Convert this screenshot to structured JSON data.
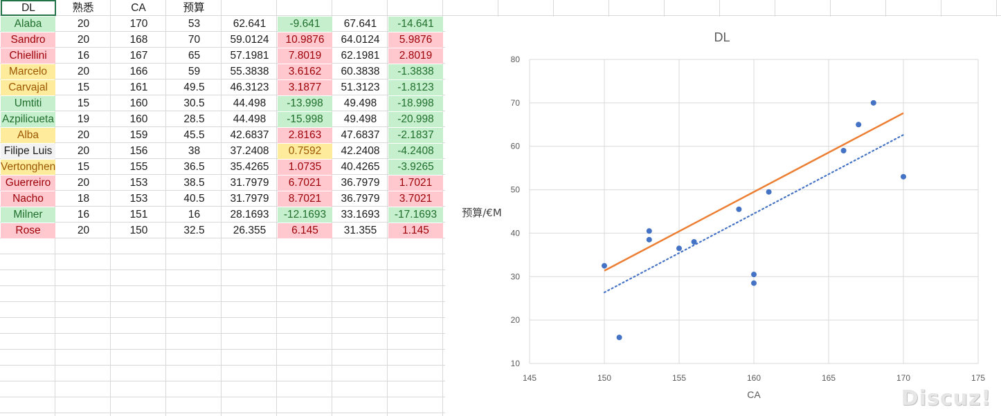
{
  "sheet": {
    "headers": [
      "DL",
      "熟悉",
      "CA",
      "预算",
      "",
      "",
      "",
      ""
    ],
    "rows": [
      {
        "cells": [
          "Alaba",
          "20",
          "170",
          "53",
          "62.641",
          "-9.641",
          "67.641",
          "-14.641"
        ],
        "colors": [
          "green",
          "",
          "",
          "",
          "",
          "green",
          "",
          "green"
        ]
      },
      {
        "cells": [
          "Sandro",
          "20",
          "168",
          "70",
          "59.0124",
          "10.9876",
          "64.0124",
          "5.9876"
        ],
        "colors": [
          "red",
          "",
          "",
          "",
          "",
          "red",
          "",
          "red"
        ]
      },
      {
        "cells": [
          "Chiellini",
          "16",
          "167",
          "65",
          "57.1981",
          "7.8019",
          "62.1981",
          "2.8019"
        ],
        "colors": [
          "red",
          "",
          "",
          "",
          "",
          "red",
          "",
          "red"
        ]
      },
      {
        "cells": [
          "Marcelo",
          "20",
          "166",
          "59",
          "55.3838",
          "3.6162",
          "60.3838",
          "-1.3838"
        ],
        "colors": [
          "yellow",
          "",
          "",
          "",
          "",
          "red",
          "",
          "green"
        ]
      },
      {
        "cells": [
          "Carvajal",
          "15",
          "161",
          "49.5",
          "46.3123",
          "3.1877",
          "51.3123",
          "-1.8123"
        ],
        "colors": [
          "yellow",
          "",
          "",
          "",
          "",
          "red",
          "",
          "green"
        ]
      },
      {
        "cells": [
          "Umtiti",
          "15",
          "160",
          "30.5",
          "44.498",
          "-13.998",
          "49.498",
          "-18.998"
        ],
        "colors": [
          "green",
          "",
          "",
          "",
          "",
          "green",
          "",
          "green"
        ]
      },
      {
        "cells": [
          "Azpilicueta",
          "19",
          "160",
          "28.5",
          "44.498",
          "-15.998",
          "49.498",
          "-20.998"
        ],
        "colors": [
          "green",
          "",
          "",
          "",
          "",
          "green",
          "",
          "green"
        ]
      },
      {
        "cells": [
          "Alba",
          "20",
          "159",
          "45.5",
          "42.6837",
          "2.8163",
          "47.6837",
          "-2.1837"
        ],
        "colors": [
          "yellow",
          "",
          "",
          "",
          "",
          "red",
          "",
          "green"
        ]
      },
      {
        "cells": [
          "Filipe Luis",
          "20",
          "156",
          "38",
          "37.2408",
          "0.7592",
          "42.2408",
          "-4.2408"
        ],
        "colors": [
          "gray",
          "",
          "",
          "",
          "",
          "yellow",
          "",
          "green"
        ]
      },
      {
        "cells": [
          "Vertonghen",
          "15",
          "155",
          "36.5",
          "35.4265",
          "1.0735",
          "40.4265",
          "-3.9265"
        ],
        "colors": [
          "yellow",
          "",
          "",
          "",
          "",
          "red",
          "",
          "green"
        ]
      },
      {
        "cells": [
          "Guerreiro",
          "20",
          "153",
          "38.5",
          "31.7979",
          "6.7021",
          "36.7979",
          "1.7021"
        ],
        "colors": [
          "red",
          "",
          "",
          "",
          "",
          "red",
          "",
          "red"
        ]
      },
      {
        "cells": [
          "Nacho",
          "18",
          "153",
          "40.5",
          "31.7979",
          "8.7021",
          "36.7979",
          "3.7021"
        ],
        "colors": [
          "red",
          "",
          "",
          "",
          "",
          "red",
          "",
          "red"
        ]
      },
      {
        "cells": [
          "Milner",
          "16",
          "151",
          "16",
          "28.1693",
          "-12.1693",
          "33.1693",
          "-17.1693"
        ],
        "colors": [
          "green",
          "",
          "",
          "",
          "",
          "green",
          "",
          "green"
        ]
      },
      {
        "cells": [
          "Rose",
          "20",
          "150",
          "32.5",
          "26.355",
          "6.145",
          "31.355",
          "1.145"
        ],
        "colors": [
          "red",
          "",
          "",
          "",
          "",
          "red",
          "",
          "red"
        ]
      }
    ]
  },
  "chart_data": {
    "type": "scatter",
    "title": "DL",
    "xlabel": "CA",
    "ylabel": "预算/€M",
    "xlim": [
      145,
      175
    ],
    "ylim": [
      10,
      80
    ],
    "xticks": [
      145,
      150,
      155,
      160,
      165,
      170,
      175
    ],
    "yticks": [
      10,
      20,
      30,
      40,
      50,
      60,
      70,
      80
    ],
    "grid": true,
    "points": [
      {
        "x": 170,
        "y": 53
      },
      {
        "x": 168,
        "y": 70
      },
      {
        "x": 167,
        "y": 65
      },
      {
        "x": 166,
        "y": 59
      },
      {
        "x": 161,
        "y": 49.5
      },
      {
        "x": 160,
        "y": 30.5
      },
      {
        "x": 160,
        "y": 28.5
      },
      {
        "x": 159,
        "y": 45.5
      },
      {
        "x": 156,
        "y": 38
      },
      {
        "x": 155,
        "y": 36.5
      },
      {
        "x": 153,
        "y": 38.5
      },
      {
        "x": 153,
        "y": 40.5
      },
      {
        "x": 151,
        "y": 16
      },
      {
        "x": 150,
        "y": 32.5
      }
    ],
    "lines": [
      {
        "style": "solid",
        "color": "#ed7d31",
        "x": [
          150,
          170
        ],
        "y": [
          31.355,
          67.641
        ]
      },
      {
        "style": "dotted",
        "color": "#4472c4",
        "x": [
          150,
          170
        ],
        "y": [
          26.355,
          62.641
        ]
      }
    ],
    "point_color": "#4472c4"
  },
  "watermark": "Discuz!"
}
